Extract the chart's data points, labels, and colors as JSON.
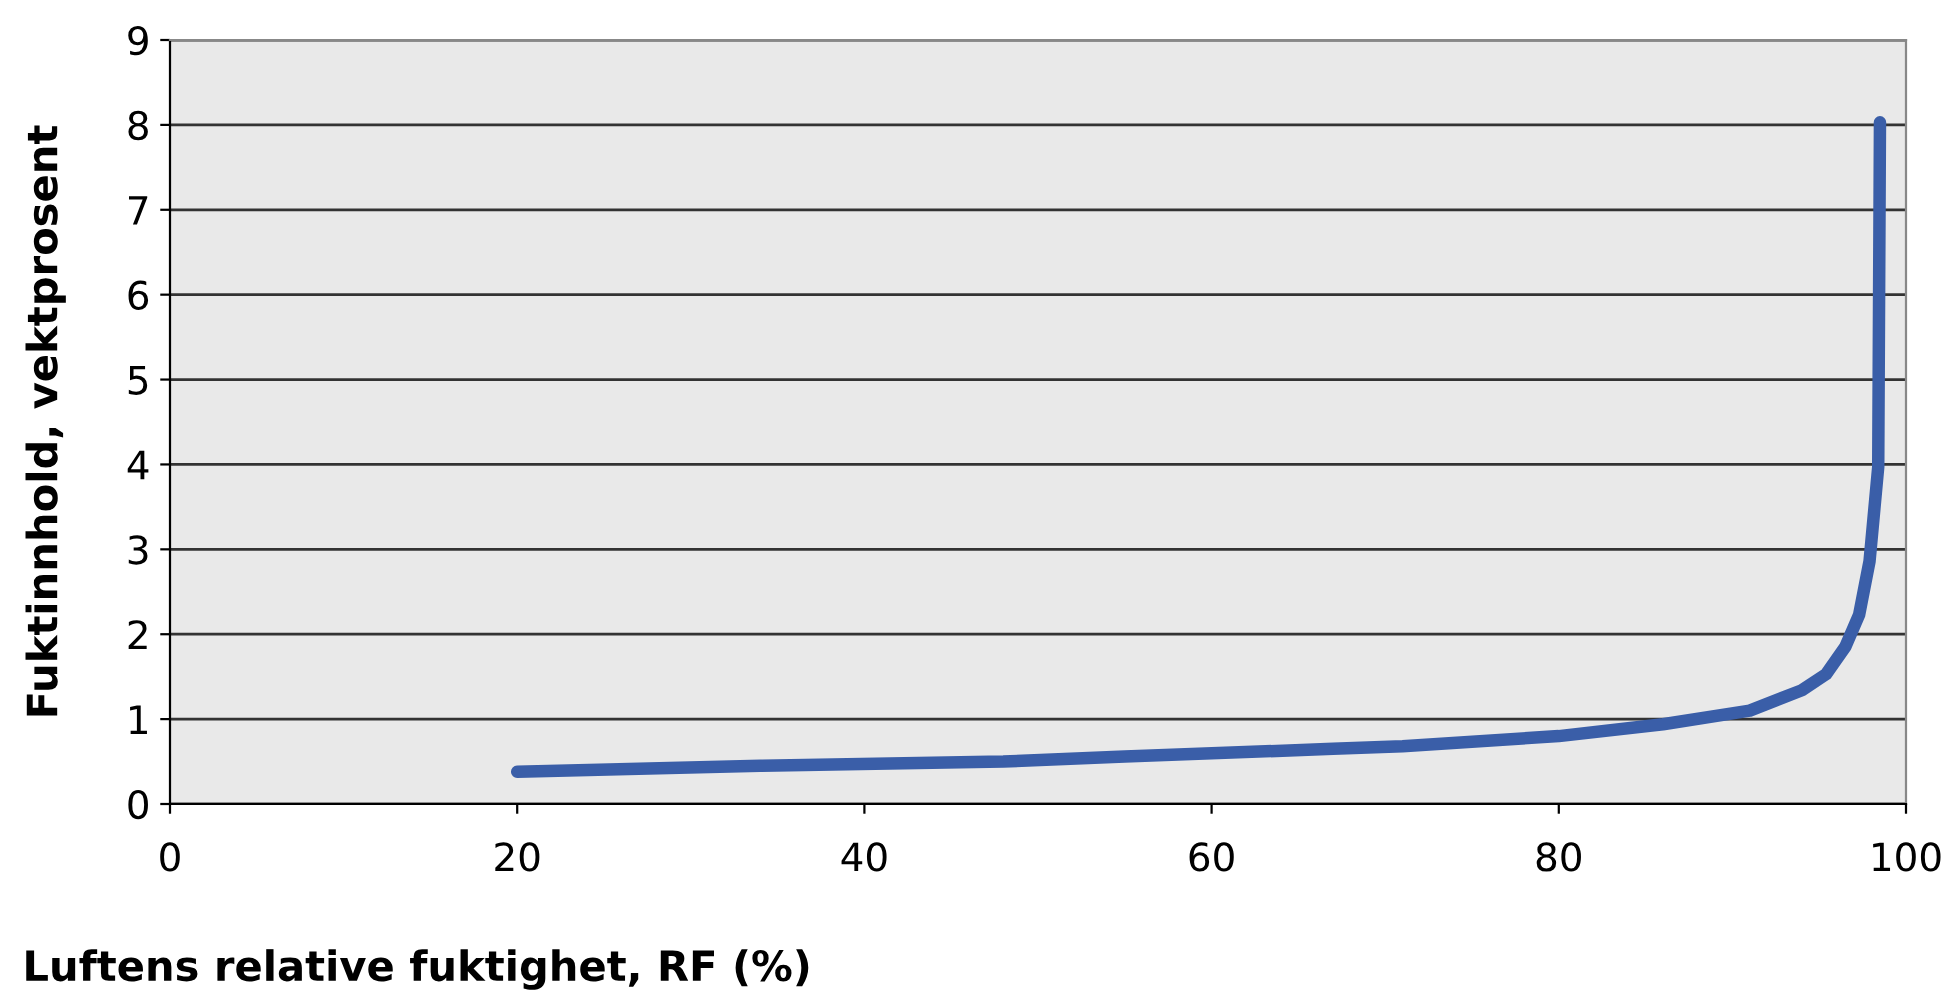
{
  "chart_data": {
    "type": "line",
    "xlabel": "Luftens relative fuktighet, RF (%)",
    "ylabel": "Fuktinnhold, vektprosent",
    "x": [
      20,
      34,
      48,
      55,
      67,
      71,
      80,
      86,
      91,
      94,
      95.4,
      96.5,
      97.3,
      97.9,
      98.4,
      98.5
    ],
    "series": [
      {
        "color": "#3a5ea8",
        "values": [
          0.38,
          0.45,
          0.5,
          0.56,
          0.65,
          0.68,
          0.8,
          0.94,
          1.1,
          1.34,
          1.53,
          1.85,
          2.23,
          2.86,
          3.97,
          8.03
        ]
      }
    ],
    "xlim": [
      0,
      100
    ],
    "xticks": [
      0,
      20,
      40,
      60,
      80,
      100
    ],
    "ylim": [
      0,
      9
    ],
    "yticks": [
      0,
      1,
      2,
      3,
      4,
      5,
      6,
      7,
      8,
      9
    ],
    "grid": "y",
    "legend": false,
    "marker": "none",
    "line_style": "solid"
  }
}
